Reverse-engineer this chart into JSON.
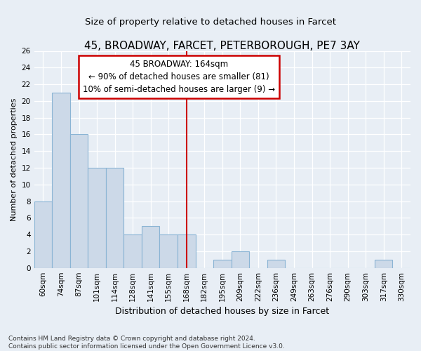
{
  "title1": "45, BROADWAY, FARCET, PETERBOROUGH, PE7 3AY",
  "title2": "Size of property relative to detached houses in Farcet",
  "xlabel": "Distribution of detached houses by size in Farcet",
  "ylabel": "Number of detached properties",
  "categories": [
    "60sqm",
    "74sqm",
    "87sqm",
    "101sqm",
    "114sqm",
    "128sqm",
    "141sqm",
    "155sqm",
    "168sqm",
    "182sqm",
    "195sqm",
    "209sqm",
    "222sqm",
    "236sqm",
    "249sqm",
    "263sqm",
    "276sqm",
    "290sqm",
    "303sqm",
    "317sqm",
    "330sqm"
  ],
  "values": [
    8,
    21,
    16,
    12,
    12,
    4,
    5,
    4,
    4,
    0,
    1,
    2,
    0,
    1,
    0,
    0,
    0,
    0,
    0,
    1,
    0
  ],
  "bar_color": "#ccd9e8",
  "bar_edge_color": "#8ab4d4",
  "vline_index": 8,
  "annotation_line1": "45 BROADWAY: 164sqm",
  "annotation_line2": "← 90% of detached houses are smaller (81)",
  "annotation_line3": "10% of semi-detached houses are larger (9) →",
  "annotation_box_color": "white",
  "annotation_box_edge": "#cc0000",
  "vline_color": "#cc0000",
  "ylim": [
    0,
    26
  ],
  "yticks": [
    0,
    2,
    4,
    6,
    8,
    10,
    12,
    14,
    16,
    18,
    20,
    22,
    24,
    26
  ],
  "footer1": "Contains HM Land Registry data © Crown copyright and database right 2024.",
  "footer2": "Contains public sector information licensed under the Open Government Licence v3.0.",
  "bg_color": "#e8eef5",
  "grid_color": "#ffffff",
  "title1_fontsize": 11,
  "title2_fontsize": 9.5,
  "ylabel_fontsize": 8,
  "xlabel_fontsize": 9,
  "tick_fontsize": 7.5,
  "footer_fontsize": 6.5,
  "annot_fontsize": 8.5
}
